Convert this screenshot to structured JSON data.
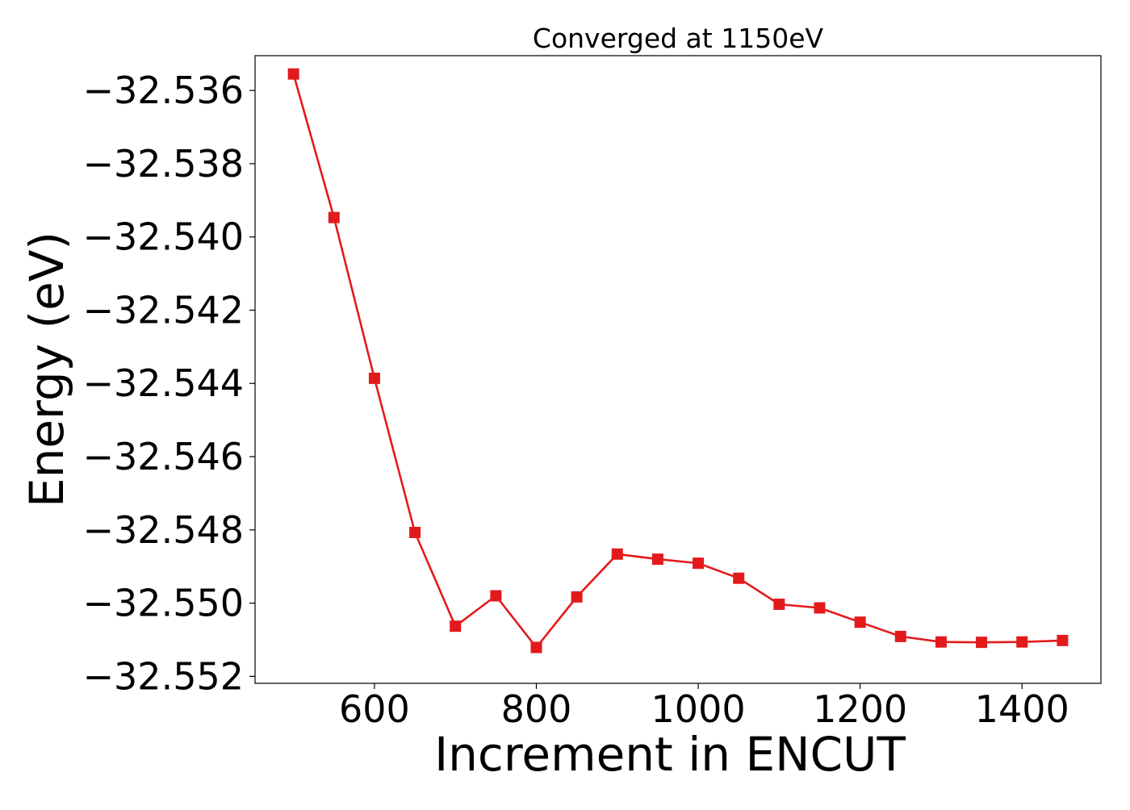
{
  "chart_data": {
    "type": "line",
    "title": "Converged at 1150eV",
    "xlabel": "Increment in ENCUT",
    "ylabel": "Energy (eV)",
    "xlim": [
      452.5,
      1497.5
    ],
    "ylim": [
      -32.55219,
      -32.53505
    ],
    "xticks": [
      600,
      800,
      1000,
      1200,
      1400
    ],
    "xtick_labels": [
      "600",
      "800",
      "1000",
      "1200",
      "1400"
    ],
    "yticks": [
      -32.536,
      -32.538,
      -32.54,
      -32.542,
      -32.544,
      -32.546,
      -32.548,
      -32.55,
      -32.552
    ],
    "ytick_labels": [
      "−32.536",
      "−32.538",
      "−32.540",
      "−32.542",
      "−32.544",
      "−32.546",
      "−32.548",
      "−32.550",
      "−32.552"
    ],
    "grid": false,
    "series": [
      {
        "color": "#e31a1c",
        "marker": "square",
        "x": [
          500,
          550,
          600,
          650,
          700,
          750,
          800,
          850,
          900,
          950,
          1000,
          1050,
          1100,
          1150,
          1200,
          1250,
          1300,
          1350,
          1400,
          1450
        ],
        "y": [
          -32.53555,
          -32.53947,
          -32.54386,
          -32.54807,
          -32.55063,
          -32.5498,
          -32.55121,
          -32.54983,
          -32.54866,
          -32.5488,
          -32.54891,
          -32.54932,
          -32.55003,
          -32.55013,
          -32.55052,
          -32.55091,
          -32.55106,
          -32.55107,
          -32.55106,
          -32.55102
        ]
      }
    ]
  }
}
